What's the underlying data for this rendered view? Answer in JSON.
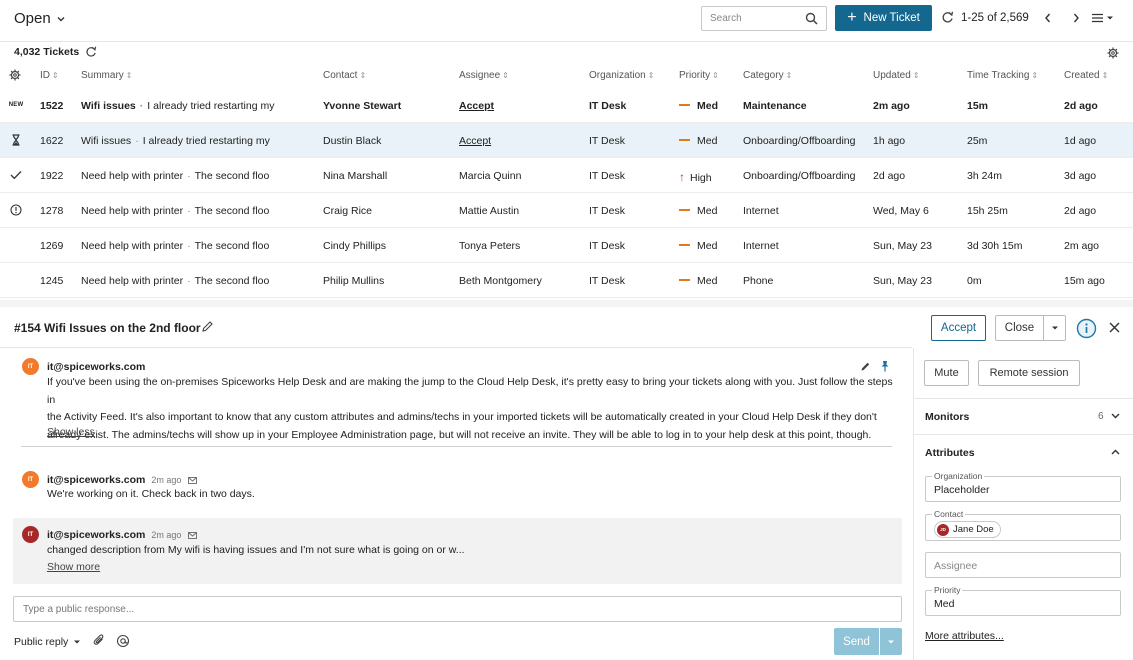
{
  "header": {
    "view_label": "Open",
    "search_placeholder": "Search",
    "new_ticket_label": "New Ticket",
    "page_range": "1-25 of 2,569"
  },
  "table": {
    "ticket_count": "4,032 Tickets",
    "columns": [
      "ID",
      "Summary",
      "Contact",
      "Assignee",
      "Organization",
      "Priority",
      "Category",
      "Updated",
      "Time Tracking",
      "Created"
    ],
    "rows": [
      {
        "status_icon": "new-tag",
        "status_text": "NEW",
        "id": "1522",
        "summary_title": "Wifi issues",
        "summary_text": "I already tried restarting my",
        "contact": "Yvonne Stewart",
        "assignee": "Accept",
        "organization": "IT Desk",
        "priority": "Med",
        "category": "Maintenance",
        "updated": "2m ago",
        "time_tracking": "15m",
        "created": "2d ago"
      },
      {
        "status_icon": "hourglass-icon",
        "id": "1622",
        "summary_title": "Wifi issues",
        "summary_text": "I already tried restarting my",
        "contact": "Dustin Black",
        "assignee": "Accept",
        "organization": "IT Desk",
        "priority": "Med",
        "category": "Onboarding/Offboarding",
        "updated": "1h ago",
        "time_tracking": "25m",
        "created": "1d ago"
      },
      {
        "status_icon": "check-icon",
        "id": "1922",
        "summary_title": "Need help with printer",
        "summary_text": "The second floo",
        "contact": "Nina Marshall",
        "assignee": "Marcia Quinn",
        "organization": "IT Desk",
        "priority": "High",
        "category": "Onboarding/Offboarding",
        "updated": "2d ago",
        "time_tracking": "3h 24m",
        "created": "3d ago"
      },
      {
        "status_icon": "alert-circle-icon",
        "id": "1278",
        "summary_title": "Need help with printer",
        "summary_text": "The second floo",
        "contact": "Craig Rice",
        "assignee": "Mattie Austin",
        "organization": "IT Desk",
        "priority": "Med",
        "category": "Internet",
        "updated": "Wed, May 6",
        "time_tracking": "15h 25m",
        "created": "2d ago"
      },
      {
        "status_icon": "",
        "id": "1269",
        "summary_title": "Need help with printer",
        "summary_text": "The second floo",
        "contact": "Cindy Phillips",
        "assignee": "Tonya Peters",
        "organization": "IT Desk",
        "priority": "Med",
        "category": "Internet",
        "updated": "Sun, May 23",
        "time_tracking": "3d 30h 15m",
        "created": "2m ago"
      },
      {
        "status_icon": "",
        "id": "1245",
        "summary_title": "Need help with printer",
        "summary_text": "The second floo",
        "contact": "Philip Mullins",
        "assignee": "Beth Montgomery",
        "organization": "IT Desk",
        "priority": "Med",
        "category": "Phone",
        "updated": "Sun, May 23",
        "time_tracking": "0m",
        "created": "15m ago"
      }
    ]
  },
  "detail": {
    "title": "#154 Wifi Issues on the 2nd floor",
    "accept_label": "Accept",
    "close_label": "Close",
    "messages": [
      {
        "avatar": "IT",
        "author": "it@spiceworks.com",
        "time": "",
        "lines": [
          "If you've been using the on-premises Spiceworks Help Desk and are making the jump to the Cloud Help Desk, it's pretty easy to bring your tickets along with you. Just follow the steps in",
          "the Activity Feed. It's also important to know that any custom attributes and admins/techs in your imported tickets will be automatically created in your Cloud Help Desk if they don't",
          "already exist. The admins/techs will show up in your Employee Administration page, but will not receive an invite. They will be able to log in to your help desk at this point, though."
        ],
        "link": "Show less"
      },
      {
        "avatar": "IT",
        "author": "it@spiceworks.com",
        "time": "2m ago",
        "lines": [
          "We're working on it. Check back in two days."
        ],
        "link": ""
      },
      {
        "avatar": "IT",
        "author": "it@spiceworks.com",
        "time": "2m ago",
        "lines": [
          "changed description from My wifi is having issues and I'm not sure what is going on or w..."
        ],
        "link": "Show more"
      }
    ],
    "response_placeholder": "Type a public response...",
    "reply_type": "Public reply",
    "send_label": "Send"
  },
  "sidebar": {
    "mute_label": "Mute",
    "remote_session_label": "Remote session",
    "monitors_label": "Monitors",
    "monitors_count": "6",
    "attributes_label": "Attributes",
    "organization_label": "Organization",
    "organization_value": "Placeholder",
    "contact_label": "Contact",
    "contact_initials": "JD",
    "contact_value": "Jane Doe",
    "assignee_placeholder": "Assignee",
    "priority_label": "Priority",
    "priority_value": "Med",
    "more_attributes_label": "More attributes..."
  },
  "colors": {
    "primary": "#14688f",
    "send_disabled": "#8fc3d8",
    "selected_row": "#e8f2f8",
    "priority_med": "#e07b1a",
    "priority_high": "#c43a1e",
    "avatar_orange": "#f27a2a",
    "avatar_red": "#a8282a"
  }
}
